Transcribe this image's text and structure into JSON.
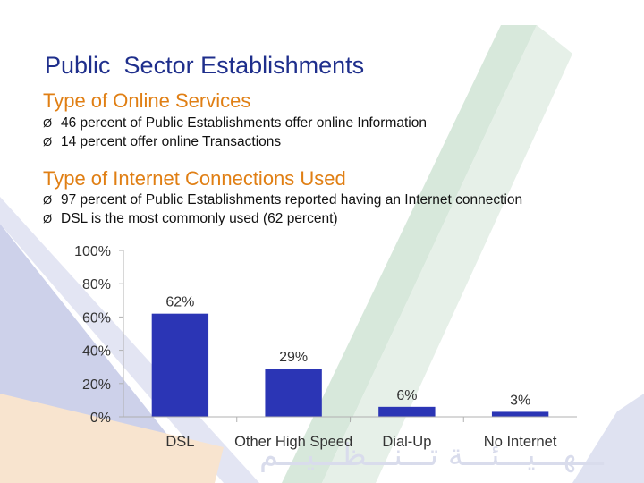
{
  "slide": {
    "title": "Public  Sector Establishments",
    "section1": {
      "heading": "Type of Online Services",
      "bullets": [
        "46 percent of Public Establishments offer online Information",
        "14 percent offer online Transactions"
      ]
    },
    "section2": {
      "heading": "Type of Internet Connections Used",
      "bullets": [
        "97 percent of Public Establishments reported having an Internet connection",
        "DSL is the most commonly used (62 percent)"
      ]
    },
    "bullet_marker": "Ø"
  },
  "colors": {
    "title": "#1f2f8c",
    "heading": "#e07f14",
    "bar": "#2b35b5",
    "deco_blue": "#c9cde6",
    "deco_green": "#cfe2d4",
    "deco_orange": "#f6dcc0"
  },
  "chart_data": {
    "type": "bar",
    "categories": [
      "DSL",
      "Other High Speed",
      "Dial-Up",
      "No Internet"
    ],
    "values": [
      62,
      29,
      6,
      3
    ],
    "data_labels": [
      "62%",
      "29%",
      "6%",
      "3%"
    ],
    "ylim": [
      0,
      100
    ],
    "yticks": [
      "0%",
      "20%",
      "40%",
      "60%",
      "80%",
      "100%"
    ],
    "title": "",
    "xlabel": "",
    "ylabel": "",
    "grid": false,
    "legend": "none"
  }
}
